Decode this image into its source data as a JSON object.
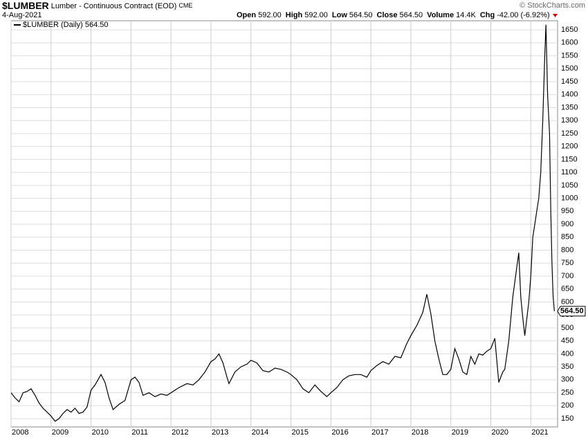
{
  "header": {
    "symbol": "$LUMBER",
    "description": "Lumber - Continuous Contract (EOD)",
    "exchange": "CME",
    "date": "4-Aug-2021",
    "copyright": "© StockCharts.com",
    "quote": [
      {
        "label": "Open",
        "value": "592.00"
      },
      {
        "label": "High",
        "value": "592.00"
      },
      {
        "label": "Low",
        "value": "564.50"
      },
      {
        "label": "Close",
        "value": "564.50"
      },
      {
        "label": "Volume",
        "value": "14.4K"
      },
      {
        "label": "Chg",
        "value": "-42.00 (-6.92%)"
      }
    ]
  },
  "chart_data": {
    "type": "line",
    "grid": true,
    "xlim": [
      2008,
      2021.67
    ],
    "ylim": [
      118,
      1685
    ],
    "xticks": [
      2008,
      2009,
      2010,
      2011,
      2012,
      2013,
      2014,
      2015,
      2016,
      2017,
      2018,
      2019,
      2020,
      2021
    ],
    "yticks": [
      150,
      200,
      250,
      300,
      350,
      400,
      450,
      500,
      550,
      600,
      650,
      700,
      750,
      800,
      850,
      900,
      950,
      1000,
      1050,
      1100,
      1150,
      1200,
      1250,
      1300,
      1350,
      1400,
      1450,
      1500,
      1550,
      1600,
      1650
    ],
    "x": [
      2008.0,
      2008.1,
      2008.2,
      2008.3,
      2008.4,
      2008.5,
      2008.6,
      2008.7,
      2008.8,
      2008.9,
      2009.0,
      2009.1,
      2009.2,
      2009.3,
      2009.4,
      2009.5,
      2009.6,
      2009.7,
      2009.8,
      2009.9,
      2010.0,
      2010.1,
      2010.25,
      2010.35,
      2010.45,
      2010.55,
      2010.7,
      2010.85,
      2011.0,
      2011.1,
      2011.2,
      2011.3,
      2011.45,
      2011.6,
      2011.75,
      2011.9,
      2012.0,
      2012.2,
      2012.4,
      2012.55,
      2012.7,
      2012.85,
      2013.0,
      2013.1,
      2013.2,
      2013.3,
      2013.4,
      2013.45,
      2013.6,
      2013.75,
      2013.9,
      2014.0,
      2014.15,
      2014.3,
      2014.45,
      2014.6,
      2014.75,
      2014.9,
      2015.0,
      2015.15,
      2015.3,
      2015.45,
      2015.6,
      2015.75,
      2015.9,
      2016.0,
      2016.15,
      2016.3,
      2016.45,
      2016.6,
      2016.75,
      2016.9,
      2017.0,
      2017.15,
      2017.3,
      2017.45,
      2017.6,
      2017.75,
      2017.9,
      2018.0,
      2018.15,
      2018.3,
      2018.4,
      2018.5,
      2018.6,
      2018.7,
      2018.8,
      2018.9,
      2019.0,
      2019.1,
      2019.2,
      2019.3,
      2019.4,
      2019.5,
      2019.6,
      2019.7,
      2019.8,
      2019.9,
      2020.0,
      2020.1,
      2020.2,
      2020.3,
      2020.35,
      2020.45,
      2020.55,
      2020.7,
      2020.75,
      2020.8,
      2020.85,
      2020.95,
      2021.0,
      2021.05,
      2021.1,
      2021.15,
      2021.2,
      2021.25,
      2021.3,
      2021.35,
      2021.38,
      2021.42,
      2021.47,
      2021.5,
      2021.53,
      2021.56,
      2021.59
    ],
    "series": [
      {
        "name": "$LUMBER (Daily) 564.50",
        "color": "#000000",
        "values": [
          250,
          230,
          215,
          250,
          255,
          265,
          240,
          210,
          190,
          175,
          160,
          140,
          150,
          170,
          185,
          175,
          190,
          170,
          175,
          195,
          260,
          280,
          320,
          290,
          230,
          185,
          205,
          220,
          300,
          310,
          290,
          240,
          250,
          235,
          245,
          240,
          250,
          270,
          285,
          280,
          300,
          330,
          370,
          380,
          400,
          365,
          310,
          285,
          330,
          350,
          360,
          375,
          365,
          335,
          330,
          345,
          340,
          330,
          320,
          300,
          265,
          250,
          280,
          255,
          235,
          250,
          270,
          300,
          315,
          320,
          320,
          310,
          335,
          355,
          370,
          360,
          390,
          385,
          440,
          470,
          510,
          560,
          630,
          555,
          450,
          380,
          320,
          320,
          340,
          420,
          380,
          330,
          320,
          390,
          360,
          400,
          395,
          410,
          420,
          460,
          290,
          330,
          340,
          450,
          620,
          790,
          620,
          540,
          470,
          600,
          700,
          850,
          900,
          950,
          1000,
          1100,
          1300,
          1550,
          1670,
          1400,
          1250,
          950,
          750,
          620,
          564.5
        ],
        "value_labels": [
          null,
          null,
          null,
          null,
          null,
          null,
          null,
          null,
          null,
          null,
          null,
          null,
          null,
          null,
          null,
          null,
          null,
          null,
          null,
          null,
          null,
          null,
          null,
          null,
          null,
          null,
          null,
          null,
          null,
          null,
          null,
          null,
          null,
          null,
          null,
          null,
          null,
          null,
          null,
          null,
          null,
          null,
          null,
          null,
          null,
          null,
          null,
          null,
          null,
          null,
          null,
          null,
          null,
          null,
          null,
          null,
          null,
          null,
          null,
          null,
          null,
          null,
          null,
          null,
          null,
          null,
          null,
          null,
          null,
          null,
          null,
          null,
          null,
          null,
          null,
          null,
          null,
          null,
          null,
          null,
          null,
          null,
          null,
          null,
          null,
          null,
          null,
          null,
          null,
          null,
          null,
          null,
          null,
          null,
          null,
          null,
          null,
          null,
          null,
          null,
          null,
          null,
          null,
          null,
          null,
          null,
          null,
          null,
          null,
          null,
          null,
          null,
          null,
          null,
          null,
          null,
          null,
          null,
          null,
          null,
          null,
          null,
          null,
          null,
          "564.50"
        ]
      }
    ]
  }
}
